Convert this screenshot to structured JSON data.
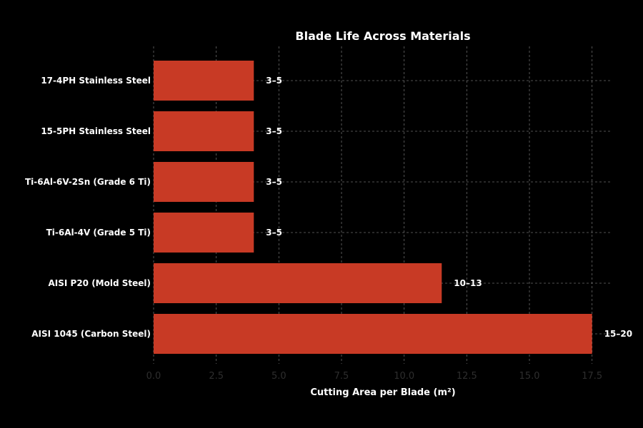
{
  "chart_data": {
    "type": "bar",
    "orientation": "horizontal",
    "title": "Blade Life Across Materials",
    "xlabel": "Cutting Area per Blade (m²)",
    "ylabel": "",
    "categories": [
      "AISI 1045 (Carbon Steel)",
      "AISI P20 (Mold Steel)",
      "Ti-6Al-4V (Grade 5 Ti)",
      "Ti-6Al-6V-2Sn (Grade 6 Ti)",
      "15-5PH Stainless Steel",
      "17-4PH Stainless Steel"
    ],
    "values": [
      17.5,
      11.5,
      4,
      4,
      4,
      4
    ],
    "data_labels": [
      "15–20",
      "10–13",
      "3–5",
      "3–5",
      "3–5",
      "3–5"
    ],
    "xlim": [
      0,
      18.25
    ],
    "xticks": [
      0,
      2.5,
      5,
      7.5,
      10,
      12.5,
      15,
      17.5
    ],
    "xtick_labels": [
      "0.0",
      "2.5",
      "5.0",
      "7.5",
      "10.0",
      "12.5",
      "15.0",
      "17.5"
    ],
    "grid": true,
    "legend": "none",
    "colors": {
      "background": "#000000",
      "bar": "#c83a25",
      "grid": "#6a6a6a",
      "text": "#ffffff",
      "tick_text": "#2e2e2e"
    }
  }
}
